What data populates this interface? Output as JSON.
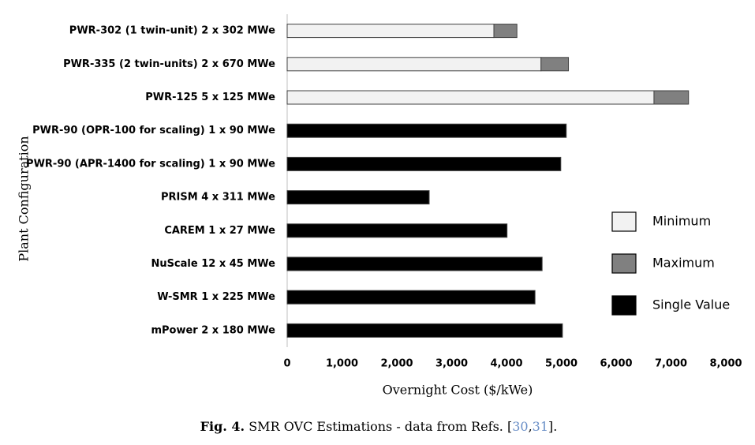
{
  "chart_data": {
    "type": "bar",
    "orientation": "horizontal",
    "stacked": true,
    "categories": [
      "PWR-302 (1 twin-unit) 2 x 302 MWe",
      "PWR-335 (2 twin-units) 2 x 670 MWe",
      "PWR-125 5 x 125 MWe",
      "PWR-90 (OPR-100 for scaling) 1 x 90 MWe",
      "PWR-90 (APR-1400 for scaling) 1 x 90 MWe",
      "PRISM 4 x 311 MWe",
      "CAREM 1 x 27 MWe",
      "NuScale 12 x 45 MWe",
      "W-SMR 1 x 225 MWe",
      "mPower  2 x 180 MWe"
    ],
    "series": [
      {
        "name": "Minimum",
        "color": "#f2f2f2",
        "values": [
          3770,
          4630,
          6690,
          null,
          null,
          null,
          null,
          null,
          null,
          null
        ]
      },
      {
        "name": "Maximum",
        "color": "#808080",
        "values": [
          420,
          500,
          630,
          null,
          null,
          null,
          null,
          null,
          null,
          null
        ]
      },
      {
        "name": "Single Value",
        "color": "#000000",
        "values": [
          null,
          null,
          null,
          5090,
          4990,
          2590,
          4010,
          4650,
          4520,
          5020
        ]
      }
    ],
    "xlim": [
      0,
      8000
    ],
    "xticks": [
      0,
      {
        "value": 1000,
        "label": "1,000"
      },
      {
        "value": 2000,
        "label": "2,000"
      },
      {
        "value": 3000,
        "label": "3,000"
      },
      {
        "value": 4000,
        "label": "4,000"
      },
      {
        "value": 5000,
        "label": "5,000"
      },
      {
        "value": 6000,
        "label": "6,000"
      },
      {
        "value": 7000,
        "label": "7,000"
      },
      {
        "value": 8000,
        "label": "8,000"
      }
    ],
    "xlabel": "Overnight Cost ($/kWe)",
    "ylabel": "Plant Configuration",
    "legend": "right",
    "caption": {
      "label": "Fig. 4.",
      "parts": [
        "SMR OVC Estimations - data from Refs. [",
        "30",
        ",",
        "31",
        "]."
      ]
    }
  }
}
